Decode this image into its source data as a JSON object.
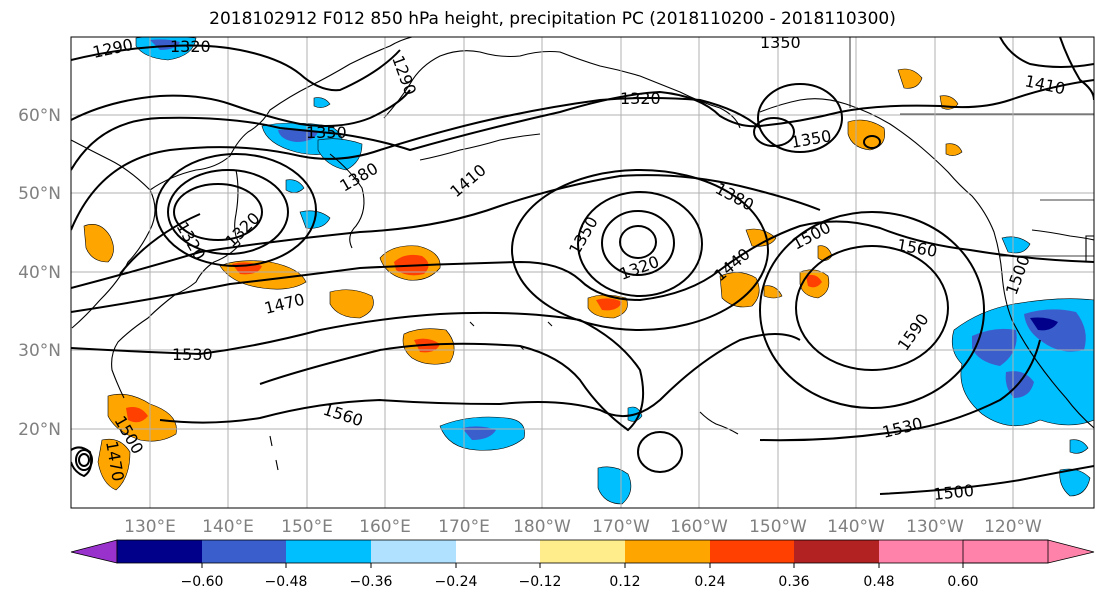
{
  "title": "2018102912 F012 850 hPa height, precipitation PC (2018110200 - 2018110300)",
  "map": {
    "lon_ticks": [
      "130°E",
      "140°E",
      "150°E",
      "160°E",
      "170°E",
      "180°W",
      "170°W",
      "160°W",
      "150°W",
      "140°W",
      "130°W",
      "120°W"
    ],
    "lat_ticks": [
      "60°N",
      "50°N",
      "40°N",
      "30°N",
      "20°N"
    ],
    "height_contour_labels": [
      "1290",
      "1320",
      "1350",
      "1290",
      "1320",
      "1350",
      "1350",
      "1380",
      "1410",
      "1410",
      "1380",
      "1350",
      "1320",
      "1440",
      "1500",
      "1560",
      "1470",
      "1590",
      "1530",
      "1530",
      "1560",
      "1500",
      "1470",
      "1500",
      "1500",
      "1320",
      "1320"
    ]
  },
  "colorbar": {
    "levels": [
      "−0.60",
      "−0.48",
      "−0.36",
      "−0.24",
      "−0.12",
      "0.12",
      "0.24",
      "0.36",
      "0.48",
      "0.60"
    ],
    "colors": [
      "#9932CC",
      "#00008B",
      "#3A5FCD",
      "#00BFFF",
      "#B0E2FF",
      "#FFFFFF",
      "#FFEC8B",
      "#FFA500",
      "#FF4000",
      "#B22222",
      "#FF82AB"
    ]
  },
  "colors": {
    "grid": "#b0b0b0",
    "contour": "#000000",
    "tick_label": "#808080"
  }
}
